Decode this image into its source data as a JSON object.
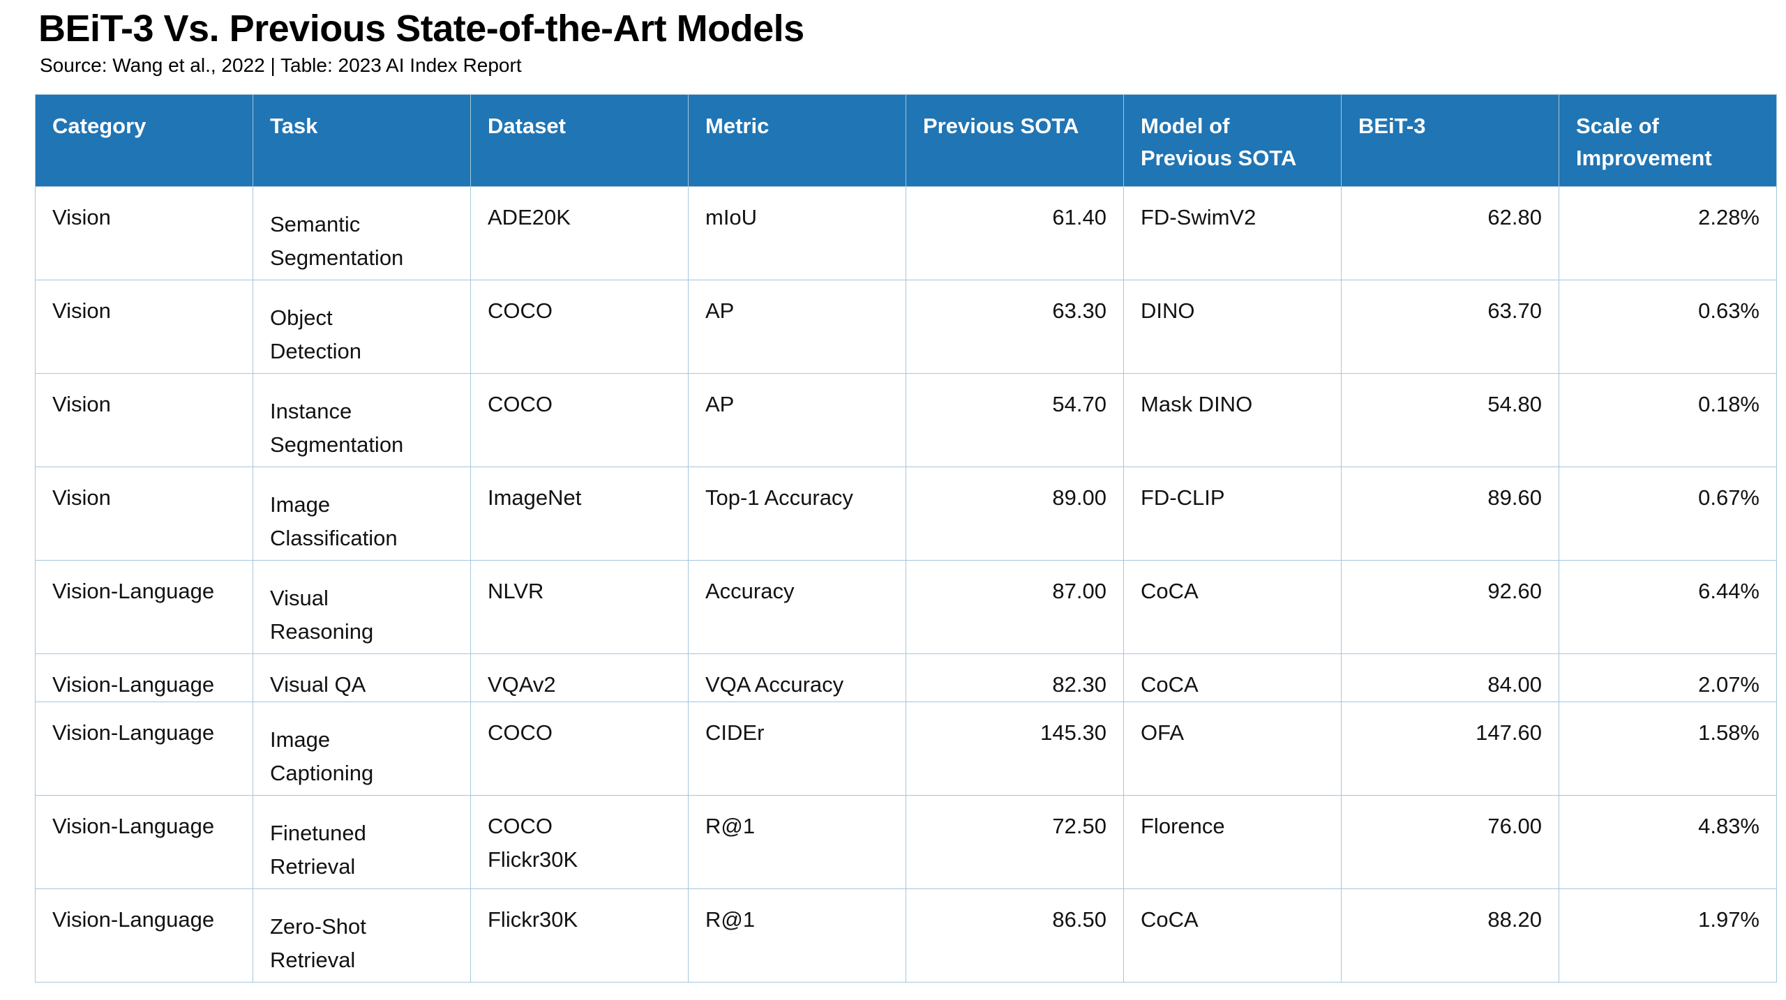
{
  "header": {
    "title": "BEiT-3 Vs. Previous State-of-the-Art Models",
    "subtitle": "Source: Wang et al., 2022 | Table: 2023 AI Index Report"
  },
  "colors": {
    "header_bg": "#2075B4",
    "header_text": "#FFFFFF",
    "cell_border": "#A5C6DC",
    "body_text": "#121212",
    "page_bg": "#FFFFFF"
  },
  "table": {
    "columns": [
      "Category",
      "Task",
      "Dataset",
      "Metric",
      "Previous SOTA",
      "Model of\nPrevious SOTA",
      "BEiT-3",
      "Scale of\nImprovement"
    ],
    "rows": [
      [
        "Vision",
        "Semantic\nSegmentation",
        "ADE20K",
        "mIoU",
        "61.40",
        "FD-SwimV2",
        "62.80",
        "2.28%"
      ],
      [
        "Vision",
        "Object\nDetection",
        "COCO",
        "AP",
        "63.30",
        "DINO",
        "63.70",
        "0.63%"
      ],
      [
        "Vision",
        "Instance\nSegmentation",
        "COCO",
        "AP",
        "54.70",
        "Mask DINO",
        "54.80",
        "0.18%"
      ],
      [
        "Vision",
        "Image\nClassification",
        "ImageNet",
        "Top-1 Accuracy",
        "89.00",
        "FD-CLIP",
        "89.60",
        "0.67%"
      ],
      [
        "Vision-Language",
        "Visual\nReasoning",
        "NLVR",
        "Accuracy",
        "87.00",
        "CoCA",
        "92.60",
        "6.44%"
      ],
      [
        "Vision-Language",
        "Visual QA",
        "VQAv2",
        "VQA Accuracy",
        "82.30",
        "CoCA",
        "84.00",
        "2.07%"
      ],
      [
        "Vision-Language",
        "Image\nCaptioning",
        "COCO",
        "CIDEr",
        "145.30",
        "OFA",
        "147.60",
        "1.58%"
      ],
      [
        "Vision-Language",
        "Finetuned\nRetrieval",
        "COCO\nFlickr30K",
        "R@1",
        "72.50",
        "Florence",
        "76.00",
        "4.83%"
      ],
      [
        "Vision-Language",
        "Zero-Shot\nRetrieval",
        "Flickr30K",
        "R@1",
        "86.50",
        "CoCA",
        "88.20",
        "1.97%"
      ]
    ]
  },
  "chart_data": {
    "type": "table",
    "title": "BEiT-3 Vs. Previous State-of-the-Art Models",
    "source": "Source: Wang et al., 2022 | Table: 2023 AI Index Report",
    "columns": [
      "Category",
      "Task",
      "Dataset",
      "Metric",
      "Previous SOTA",
      "Model of Previous SOTA",
      "BEiT-3",
      "Scale of Improvement"
    ],
    "rows": [
      [
        "Vision",
        "Semantic Segmentation",
        "ADE20K",
        "mIoU",
        61.4,
        "FD-SwimV2",
        62.8,
        "2.28%"
      ],
      [
        "Vision",
        "Object Detection",
        "COCO",
        "AP",
        63.3,
        "DINO",
        63.7,
        "0.63%"
      ],
      [
        "Vision",
        "Instance Segmentation",
        "COCO",
        "AP",
        54.7,
        "Mask DINO",
        54.8,
        "0.18%"
      ],
      [
        "Vision",
        "Image Classification",
        "ImageNet",
        "Top-1 Accuracy",
        89.0,
        "FD-CLIP",
        89.6,
        "0.67%"
      ],
      [
        "Vision-Language",
        "Visual Reasoning",
        "NLVR",
        "Accuracy",
        87.0,
        "CoCA",
        92.6,
        "6.44%"
      ],
      [
        "Vision-Language",
        "Visual QA",
        "VQAv2",
        "VQA Accuracy",
        82.3,
        "CoCA",
        84.0,
        "2.07%"
      ],
      [
        "Vision-Language",
        "Image Captioning",
        "COCO",
        "CIDEr",
        145.3,
        "OFA",
        147.6,
        "1.58%"
      ],
      [
        "Vision-Language",
        "Finetuned Retrieval",
        "COCO Flickr30K",
        "R@1",
        72.5,
        "Florence",
        76.0,
        "4.83%"
      ],
      [
        "Vision-Language",
        "Zero-Shot Retrieval",
        "Flickr30K",
        "R@1",
        86.5,
        "CoCA",
        88.2,
        "1.97%"
      ]
    ]
  }
}
